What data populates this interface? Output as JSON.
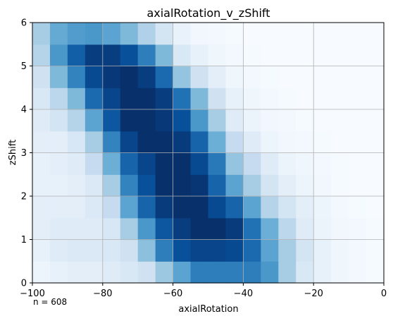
{
  "chart_data": {
    "type": "heatmap",
    "title": "axialRotation_v_zShift",
    "xlabel": "axialRotation",
    "ylabel": "zShift",
    "xlim": [
      -100,
      0
    ],
    "ylim": [
      0,
      6
    ],
    "xticks": [
      -100,
      -80,
      -60,
      -40,
      -20,
      0
    ],
    "xtick_labels": [
      "−100",
      "−80",
      "−60",
      "−40",
      "−20",
      "0"
    ],
    "yticks": [
      0,
      1,
      2,
      3,
      4,
      5,
      6
    ],
    "ytick_labels": [
      "0",
      "1",
      "2",
      "3",
      "4",
      "5",
      "6"
    ],
    "grid": true,
    "colormap": "Blues",
    "annotation": "n = 608",
    "bin_edges_x": [
      -100,
      -95,
      -90,
      -85,
      -80,
      -75,
      -70,
      -65,
      -60,
      -55,
      -50,
      -45,
      -40,
      -35,
      -30,
      -25,
      -20,
      -15,
      -10,
      -5,
      0
    ],
    "bin_edges_y": [
      0,
      0.5,
      1,
      1.5,
      2,
      2.5,
      3,
      3.5,
      4,
      4.5,
      5,
      5.5,
      6
    ],
    "intensity_rows_bottom_to_top": [
      [
        0.05,
        0.08,
        0.1,
        0.1,
        0.12,
        0.15,
        0.2,
        0.38,
        0.55,
        0.7,
        0.7,
        0.7,
        0.7,
        0.6,
        0.35,
        0.15,
        0.08,
        0.04,
        0.02,
        0.01
      ],
      [
        0.08,
        0.12,
        0.14,
        0.14,
        0.15,
        0.2,
        0.42,
        0.7,
        0.88,
        0.92,
        0.92,
        0.9,
        0.78,
        0.55,
        0.35,
        0.18,
        0.08,
        0.04,
        0.02,
        0.01
      ],
      [
        0.1,
        0.12,
        0.12,
        0.12,
        0.16,
        0.35,
        0.6,
        0.85,
        0.95,
        1.0,
        1.0,
        0.96,
        0.75,
        0.5,
        0.28,
        0.12,
        0.06,
        0.03,
        0.02,
        0.01
      ],
      [
        0.1,
        0.1,
        0.1,
        0.14,
        0.25,
        0.55,
        0.8,
        0.96,
        1.0,
        1.0,
        0.9,
        0.8,
        0.55,
        0.3,
        0.18,
        0.1,
        0.05,
        0.02,
        0.01,
        0.0
      ],
      [
        0.08,
        0.08,
        0.1,
        0.14,
        0.35,
        0.68,
        0.88,
        1.0,
        1.0,
        0.98,
        0.8,
        0.55,
        0.35,
        0.18,
        0.1,
        0.05,
        0.03,
        0.01,
        0.0,
        0.0
      ],
      [
        0.08,
        0.1,
        0.12,
        0.25,
        0.5,
        0.8,
        0.92,
        1.0,
        1.0,
        0.9,
        0.72,
        0.4,
        0.25,
        0.12,
        0.06,
        0.04,
        0.02,
        0.01,
        0.0,
        0.0
      ],
      [
        0.1,
        0.1,
        0.16,
        0.35,
        0.68,
        0.92,
        1.0,
        1.0,
        0.96,
        0.8,
        0.5,
        0.25,
        0.12,
        0.05,
        0.03,
        0.02,
        0.01,
        0.0,
        0.0,
        0.0
      ],
      [
        0.12,
        0.18,
        0.3,
        0.55,
        0.85,
        1.0,
        1.0,
        0.97,
        0.88,
        0.6,
        0.35,
        0.12,
        0.06,
        0.03,
        0.02,
        0.01,
        0.0,
        0.0,
        0.0,
        0.0
      ],
      [
        0.15,
        0.28,
        0.45,
        0.78,
        0.92,
        1.0,
        1.0,
        0.95,
        0.75,
        0.45,
        0.2,
        0.08,
        0.04,
        0.02,
        0.01,
        0.0,
        0.0,
        0.0,
        0.0,
        0.0
      ],
      [
        0.2,
        0.45,
        0.68,
        0.9,
        0.97,
        1.0,
        0.95,
        0.78,
        0.4,
        0.2,
        0.1,
        0.04,
        0.02,
        0.01,
        0.0,
        0.0,
        0.0,
        0.0,
        0.0,
        0.0
      ],
      [
        0.3,
        0.6,
        0.82,
        0.95,
        0.95,
        0.88,
        0.7,
        0.45,
        0.15,
        0.08,
        0.04,
        0.02,
        0.01,
        0.0,
        0.0,
        0.0,
        0.0,
        0.0,
        0.0,
        0.0
      ],
      [
        0.35,
        0.52,
        0.58,
        0.6,
        0.55,
        0.45,
        0.32,
        0.18,
        0.07,
        0.03,
        0.02,
        0.01,
        0.0,
        0.0,
        0.0,
        0.0,
        0.0,
        0.0,
        0.0,
        0.0
      ]
    ]
  }
}
